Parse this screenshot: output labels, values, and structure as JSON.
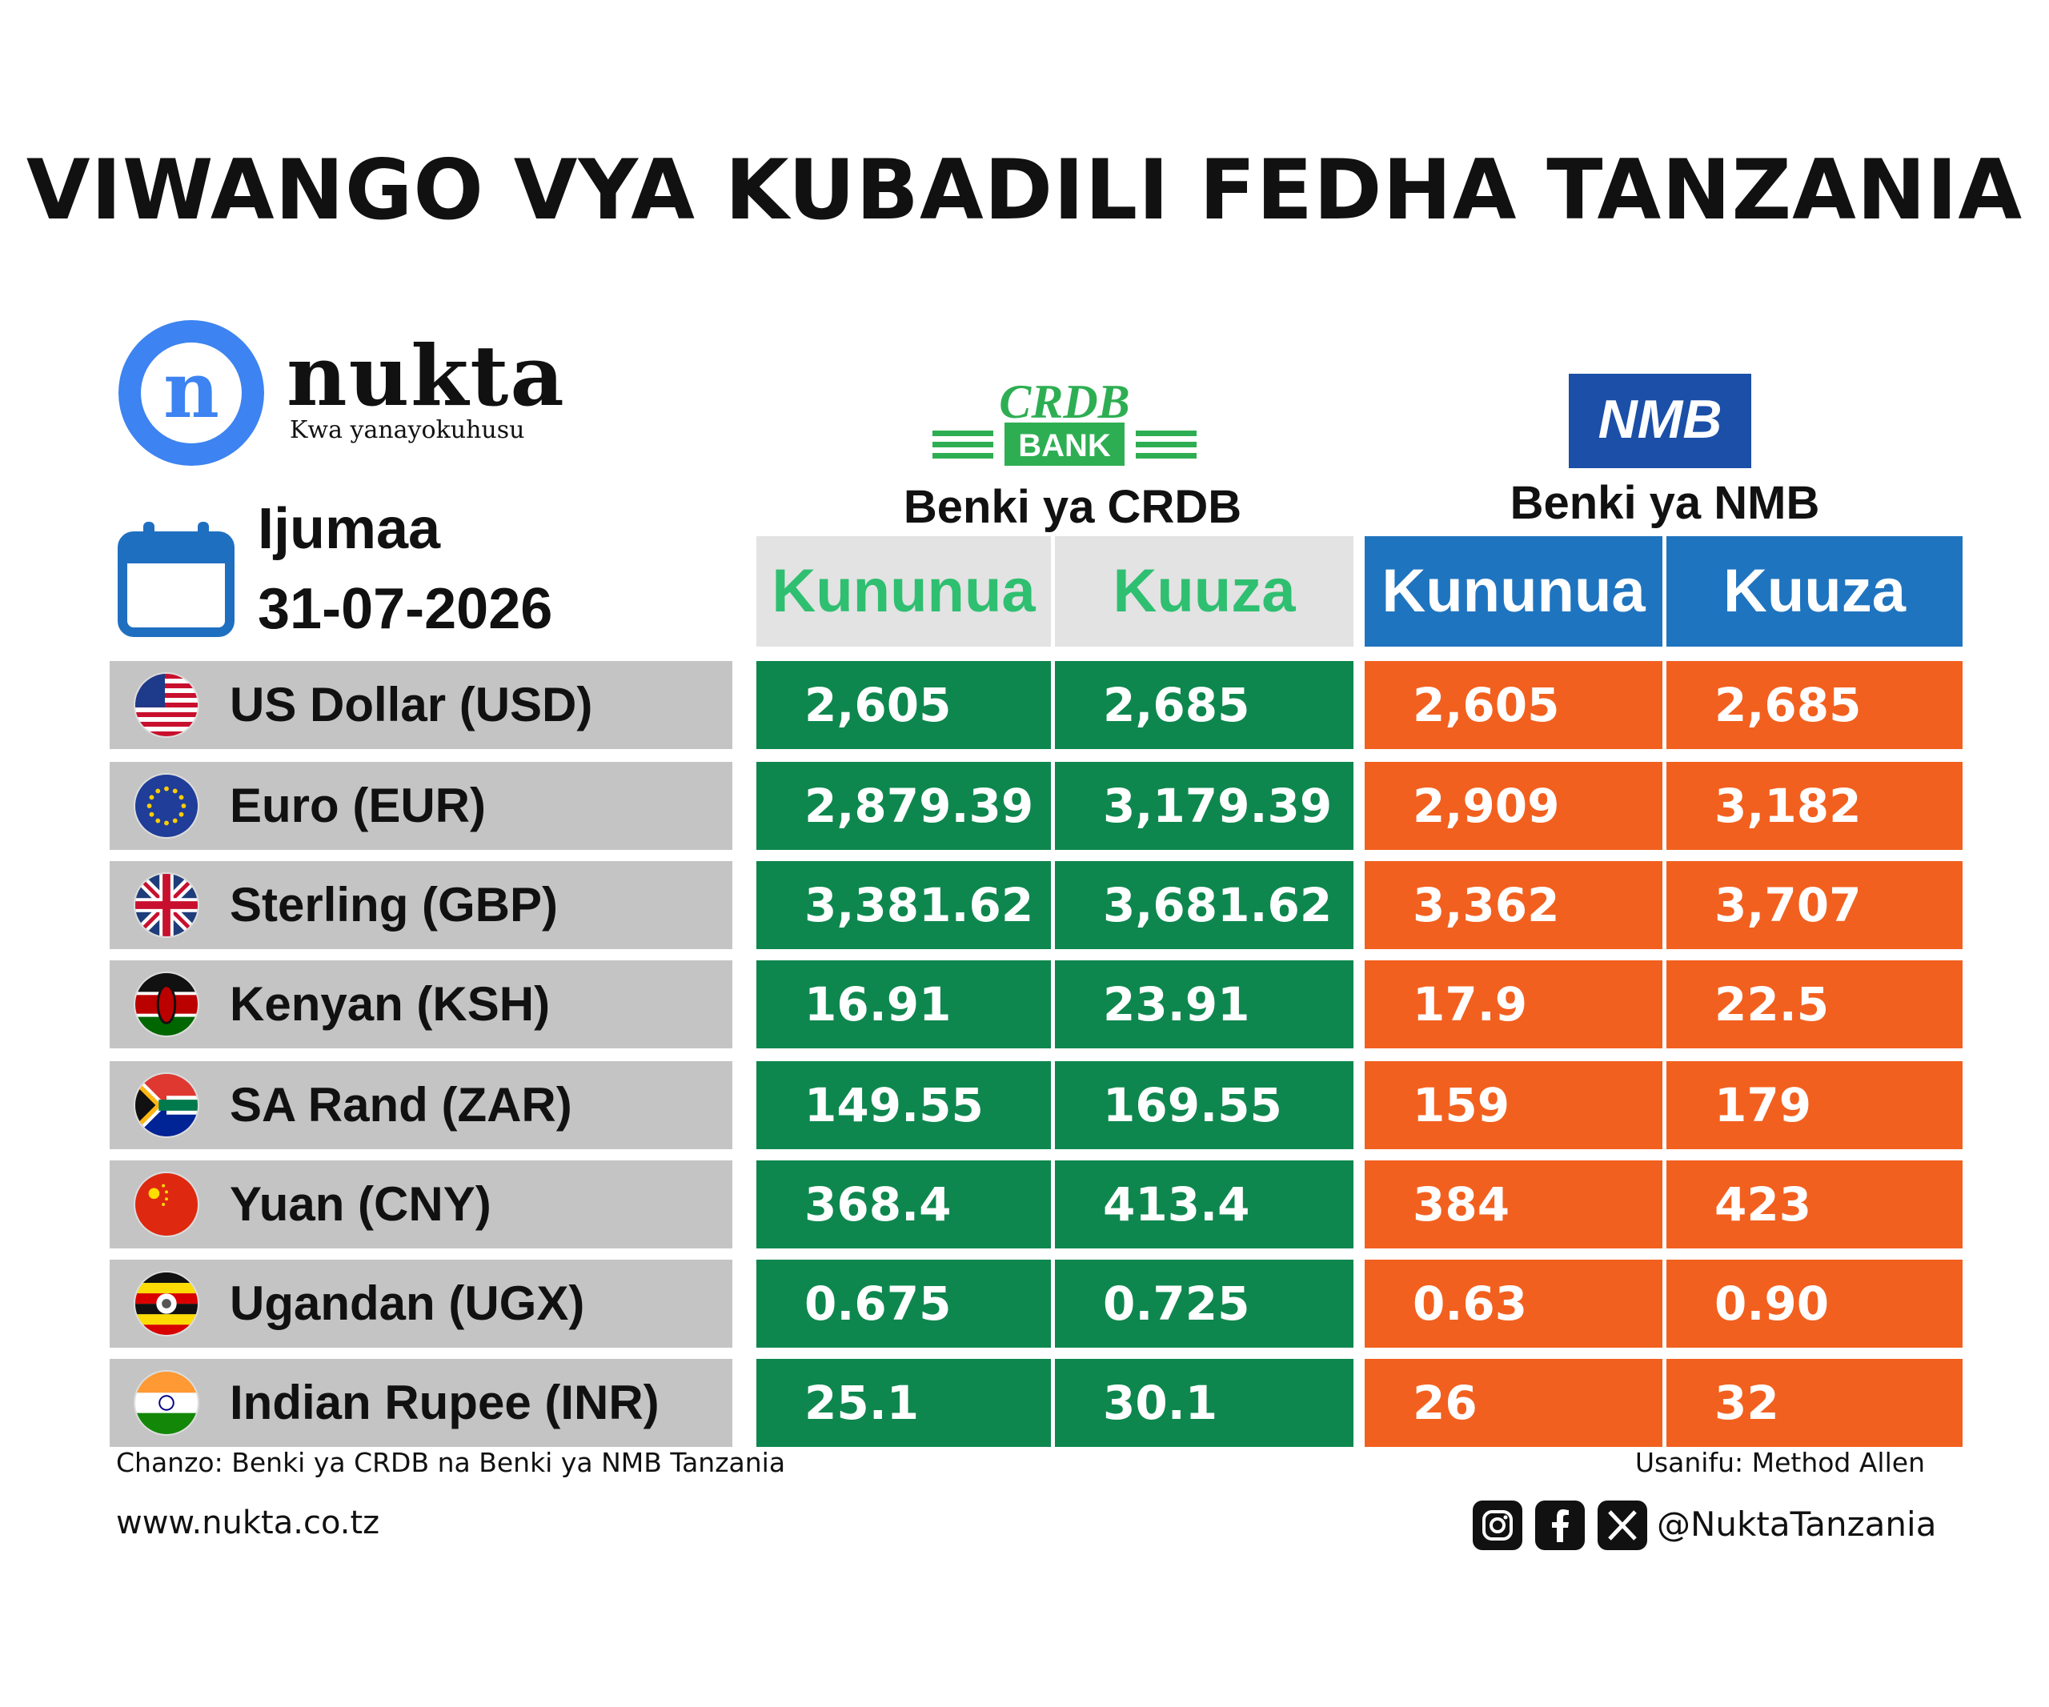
{
  "title": "VIWANGO VYA KUBADILI FEDHA TANZANIA",
  "logo": {
    "mark": "n",
    "name": "nukta",
    "tagline": "Kwa yanayokuhusu"
  },
  "date": {
    "day": "Ijumaa",
    "value": "31-07-2026",
    "icon": "calendar-icon"
  },
  "banks": {
    "crdb": {
      "logo_top": "CRDB",
      "logo_bottom": "BANK",
      "caption": "Benki ya CRDB",
      "buy": "Kununua",
      "sell": "Kuuza",
      "color": "#0e874e",
      "header_text_color": "#2fbf71"
    },
    "nmb": {
      "logo": "NMB",
      "caption": "Benki ya NMB",
      "buy": "Kununua",
      "sell": "Kuuza",
      "color": "#f2601f",
      "header_color": "#1f74bf"
    }
  },
  "rows": [
    {
      "currency": "US Dollar (USD)",
      "flag": "usa-flag-icon",
      "crdb_buy": "2,605",
      "crdb_sell": "2,685",
      "nmb_buy": "2,605",
      "nmb_sell": "2,685"
    },
    {
      "currency": "Euro (EUR)",
      "flag": "eu-flag-icon",
      "crdb_buy": "2,879.39",
      "crdb_sell": "3,179.39",
      "nmb_buy": "2,909",
      "nmb_sell": "3,182"
    },
    {
      "currency": "Sterling (GBP)",
      "flag": "uk-flag-icon",
      "crdb_buy": "3,381.62",
      "crdb_sell": "3,681.62",
      "nmb_buy": "3,362",
      "nmb_sell": "3,707"
    },
    {
      "currency": "Kenyan (KSH)",
      "flag": "kenya-flag-icon",
      "crdb_buy": "16.91",
      "crdb_sell": "23.91",
      "nmb_buy": "17.9",
      "nmb_sell": "22.5"
    },
    {
      "currency": "SA Rand (ZAR)",
      "flag": "south-africa-flag-icon",
      "crdb_buy": "149.55",
      "crdb_sell": "169.55",
      "nmb_buy": "159",
      "nmb_sell": "179"
    },
    {
      "currency": "Yuan (CNY)",
      "flag": "china-flag-icon",
      "crdb_buy": "368.4",
      "crdb_sell": "413.4",
      "nmb_buy": "384",
      "nmb_sell": "423"
    },
    {
      "currency": "Ugandan (UGX)",
      "flag": "uganda-flag-icon",
      "crdb_buy": "0.675",
      "crdb_sell": "0.725",
      "nmb_buy": "0.63",
      "nmb_sell": "0.90"
    },
    {
      "currency": "Indian Rupee (INR)",
      "flag": "india-flag-icon",
      "crdb_buy": "25.1",
      "crdb_sell": "30.1",
      "nmb_buy": "26",
      "nmb_sell": "32"
    }
  ],
  "footer": {
    "source": "Chanzo: Benki ya CRDB na Benki ya NMB Tanzania",
    "designer": "Usanifu: Method Allen",
    "website": "www.nukta.co.tz",
    "handle": "@NuktaTanzania",
    "social_icons": [
      "instagram-icon",
      "facebook-icon",
      "x-icon"
    ]
  }
}
